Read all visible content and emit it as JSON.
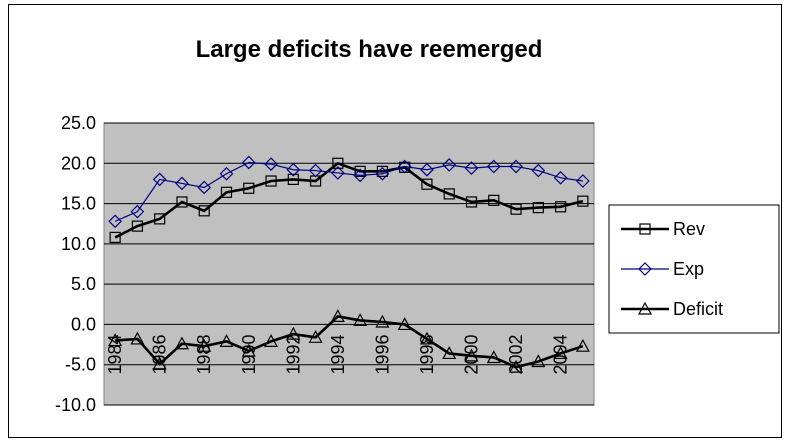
{
  "chart_data": {
    "type": "line",
    "title": "Large deficits have reemerged",
    "xlabel": "",
    "ylabel": "",
    "x": [
      1984,
      1985,
      1986,
      1987,
      1988,
      1989,
      1990,
      1991,
      1992,
      1993,
      1994,
      1995,
      1996,
      1997,
      1998,
      1999,
      2000,
      2001,
      2002,
      2003,
      2004,
      2005
    ],
    "x_tick_labels": [
      "1984",
      "1986",
      "1988",
      "1990",
      "1992",
      "1994",
      "1996",
      "1998",
      "2000",
      "2002",
      "2004"
    ],
    "y_tick_labels": [
      "25.0",
      "20.0",
      "15.0",
      "10.0",
      "5.0",
      "0.0",
      "-5.0",
      "-10.0"
    ],
    "ylim": [
      -10,
      25
    ],
    "grid": "horizontal",
    "plot_background": "#c0c0c0",
    "legend_position": "right",
    "series": [
      {
        "name": "Rev",
        "color": "#000000",
        "marker": "square",
        "values": [
          10.8,
          12.2,
          13.1,
          15.2,
          14.1,
          16.4,
          16.9,
          17.8,
          18.0,
          17.8,
          20.0,
          19.0,
          19.0,
          19.5,
          17.4,
          16.2,
          15.2,
          15.4,
          14.3,
          14.5,
          14.6,
          15.3
        ]
      },
      {
        "name": "Exp",
        "color": "#000080",
        "marker": "diamond",
        "values": [
          12.8,
          14.0,
          18.0,
          17.5,
          17.0,
          18.7,
          20.1,
          19.9,
          19.2,
          19.1,
          18.8,
          18.5,
          18.7,
          19.6,
          19.2,
          19.8,
          19.4,
          19.6,
          19.6,
          19.1,
          18.2,
          17.8
        ]
      },
      {
        "name": "Deficit",
        "color": "#000000",
        "marker": "triangle",
        "values": [
          -2.0,
          -1.8,
          -4.9,
          -2.4,
          -2.7,
          -2.1,
          -3.3,
          -2.1,
          -1.2,
          -1.6,
          1.0,
          0.5,
          0.3,
          0.0,
          -1.8,
          -3.6,
          -3.9,
          -4.1,
          -5.3,
          -4.6,
          -3.6,
          -2.7
        ]
      }
    ]
  }
}
